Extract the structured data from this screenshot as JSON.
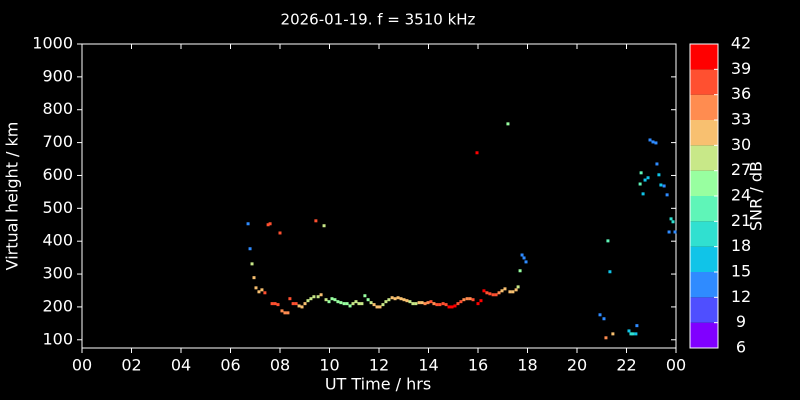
{
  "chart_data": {
    "type": "scatter",
    "title": "2026-01-19. f = 3510 kHz",
    "x_label": "UT Time / hrs",
    "y_label": "Virtual height / km",
    "xlim": [
      0,
      24
    ],
    "xticks": [
      {
        "value": 0,
        "label": "00"
      },
      {
        "value": 2,
        "label": "02"
      },
      {
        "value": 4,
        "label": "04"
      },
      {
        "value": 6,
        "label": "06"
      },
      {
        "value": 8,
        "label": "08"
      },
      10,
      12,
      14,
      16,
      18,
      20,
      22,
      {
        "value": 24,
        "label": "00"
      }
    ],
    "ylim": [
      75,
      1000
    ],
    "yticks": [
      100,
      200,
      300,
      400,
      500,
      600,
      700,
      800,
      900,
      1000
    ],
    "grid": false,
    "colorbar": {
      "label": "SNR / dB",
      "lim": [
        6,
        42
      ],
      "ticks": [
        6,
        9,
        12,
        15,
        18,
        21,
        24,
        27,
        30,
        33,
        36,
        39,
        42
      ],
      "colors": [
        "#8000ff",
        "#4f4fff",
        "#2f8bff",
        "#10c4e8",
        "#30e0d0",
        "#5ff5b8",
        "#98ffa0",
        "#c8e888",
        "#f8c070",
        "#ff8c50",
        "#ff5030",
        "#ff0000"
      ]
    },
    "x": [
      6.71,
      6.79,
      6.87,
      6.95,
      7.03,
      7.15,
      7.27,
      7.39,
      7.52,
      7.6,
      7.68,
      7.8,
      7.92,
      8.0,
      8.08,
      8.2,
      8.32,
      8.4,
      8.53,
      8.65,
      8.77,
      8.89,
      9.01,
      9.13,
      9.25,
      9.37,
      9.45,
      9.54,
      9.66,
      9.78,
      9.86,
      9.98,
      10.1,
      10.22,
      10.34,
      10.46,
      10.59,
      10.71,
      10.83,
      10.95,
      11.07,
      11.19,
      11.31,
      11.43,
      11.56,
      11.68,
      11.8,
      11.92,
      12.04,
      12.16,
      12.28,
      12.4,
      12.53,
      12.65,
      12.77,
      12.89,
      13.01,
      13.13,
      13.25,
      13.37,
      13.49,
      13.62,
      13.74,
      13.86,
      13.98,
      14.1,
      14.22,
      14.34,
      14.46,
      14.59,
      14.71,
      14.83,
      14.95,
      15.07,
      15.19,
      15.31,
      15.43,
      15.56,
      15.68,
      15.8,
      15.96,
      16.0,
      16.12,
      16.24,
      16.36,
      16.48,
      16.61,
      16.73,
      16.85,
      16.97,
      17.09,
      17.21,
      17.29,
      17.41,
      17.54,
      17.62,
      17.7,
      17.78,
      17.86,
      17.94,
      20.93,
      21.09,
      21.17,
      21.25,
      21.33,
      21.45,
      22.1,
      22.18,
      22.26,
      22.38,
      22.42,
      22.55,
      22.59,
      22.67,
      22.75,
      22.87,
      22.95,
      23.07,
      23.19,
      23.23,
      23.31,
      23.39,
      23.52,
      23.64,
      23.72,
      23.8,
      23.88,
      23.96
    ],
    "y": [
      453,
      377,
      331,
      289,
      258,
      246,
      252,
      243,
      450,
      453,
      210,
      210,
      207,
      425,
      188,
      182,
      182,
      225,
      210,
      210,
      203,
      200,
      210,
      219,
      225,
      231,
      462,
      231,
      237,
      447,
      222,
      216,
      225,
      222,
      216,
      213,
      210,
      210,
      203,
      210,
      216,
      210,
      210,
      234,
      222,
      213,
      207,
      200,
      200,
      207,
      216,
      222,
      228,
      225,
      228,
      225,
      222,
      219,
      216,
      210,
      210,
      213,
      213,
      210,
      213,
      216,
      210,
      207,
      207,
      210,
      207,
      200,
      200,
      203,
      210,
      216,
      222,
      225,
      225,
      222,
      669,
      210,
      219,
      249,
      243,
      240,
      237,
      237,
      243,
      249,
      255,
      757,
      246,
      246,
      252,
      261,
      310,
      358,
      349,
      337,
      176,
      164,
      106,
      401,
      307,
      118,
      127,
      118,
      118,
      118,
      143,
      574,
      608,
      544,
      586,
      593,
      708,
      702,
      699,
      635,
      602,
      571,
      568,
      541,
      428,
      468,
      459,
      428
    ],
    "snr": [
      13,
      13,
      28,
      31,
      31,
      31,
      31,
      37,
      37,
      37,
      37,
      37,
      37,
      37,
      34,
      34,
      34,
      37,
      37,
      37,
      31,
      31,
      31,
      28,
      28,
      28,
      37,
      28,
      31,
      28,
      28,
      25,
      25,
      25,
      25,
      25,
      25,
      25,
      25,
      28,
      28,
      28,
      28,
      25,
      25,
      28,
      31,
      31,
      31,
      28,
      28,
      28,
      31,
      31,
      31,
      31,
      31,
      31,
      28,
      28,
      28,
      31,
      31,
      34,
      34,
      37,
      34,
      37,
      37,
      37,
      37,
      40,
      40,
      40,
      37,
      37,
      34,
      34,
      34,
      37,
      40,
      40,
      40,
      40,
      37,
      37,
      37,
      37,
      34,
      31,
      31,
      25,
      31,
      31,
      31,
      28,
      25,
      13,
      13,
      13,
      13,
      13,
      34,
      22,
      16,
      31,
      16,
      19,
      19,
      16,
      13,
      22,
      22,
      16,
      16,
      16,
      13,
      13,
      13,
      13,
      16,
      16,
      13,
      13,
      13,
      19,
      19,
      13
    ]
  }
}
